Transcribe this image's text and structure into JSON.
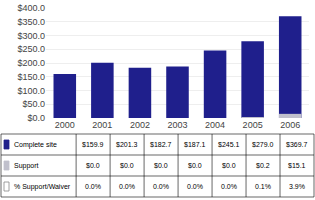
{
  "chart_data": {
    "type": "bar",
    "categories": [
      "2000",
      "2001",
      "2002",
      "2003",
      "2004",
      "2005",
      "2006"
    ],
    "series": [
      {
        "name": "Complete site",
        "color": "#1f1f8c",
        "values": [
          159.9,
          201.3,
          182.7,
          187.1,
          245.1,
          279.0,
          369.7
        ],
        "value_labels": [
          "$159.9",
          "$201.3",
          "$182.7",
          "$187.1",
          "$245.1",
          "$279.0",
          "$369.7"
        ]
      },
      {
        "name": "Support",
        "color": "#c0c0cc",
        "values": [
          0.0,
          0.0,
          0.0,
          0.0,
          0.0,
          0.2,
          15.1
        ],
        "value_labels": [
          "$0.0",
          "$0.0",
          "$0.0",
          "$0.0",
          "$0.0",
          "$0.2",
          "$15.1"
        ]
      },
      {
        "name": "% Support/Waiver",
        "type": "table",
        "color": "#ffffff",
        "values": [
          0.0,
          0.0,
          0.0,
          0.0,
          0.0,
          0.1,
          3.9
        ],
        "value_labels": [
          "0.0%",
          "0.0%",
          "0.0%",
          "0.0%",
          "0.0%",
          "0.1%",
          "3.9%"
        ]
      }
    ],
    "stacked": false,
    "ylim": [
      0,
      400
    ],
    "yticks": [
      {
        "value": 0,
        "label": "$0.0"
      },
      {
        "value": 50,
        "label": "$50.0"
      },
      {
        "value": 100,
        "label": "$100.0"
      },
      {
        "value": 150,
        "label": "$150.0"
      },
      {
        "value": 200,
        "label": "$200.0"
      },
      {
        "value": 250,
        "label": "$250.0"
      },
      {
        "value": 300,
        "label": "$300.0"
      },
      {
        "value": 350,
        "label": "$350.0"
      },
      {
        "value": 400,
        "label": "$400.0"
      }
    ],
    "grid": true
  }
}
